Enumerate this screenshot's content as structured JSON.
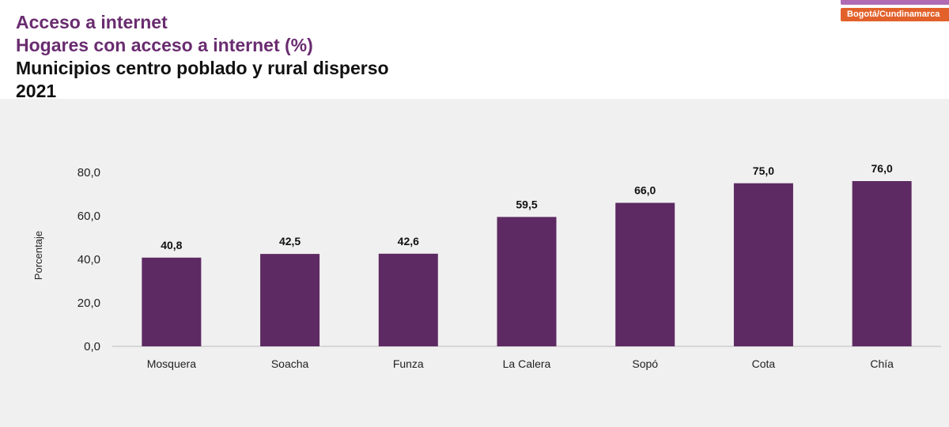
{
  "header": {
    "title": "Acceso a internet",
    "subtitle": "Hogares con acceso a internet (%)",
    "subtitle2": "Municipios centro poblado y rural disperso",
    "year": "2021"
  },
  "badge": {
    "label": "Bogotá/Cundinamarca"
  },
  "chart_data": {
    "type": "bar",
    "categories": [
      "Mosquera",
      "Soacha",
      "Funza",
      "La Calera",
      "Sopó",
      "Cota",
      "Chía"
    ],
    "values": [
      40.8,
      42.5,
      42.6,
      59.5,
      66.0,
      75.0,
      76.0
    ],
    "value_labels": [
      "40,8",
      "42,5",
      "42,6",
      "59,5",
      "66,0",
      "75,0",
      "76,0"
    ],
    "title": "",
    "xlabel": "",
    "ylabel": "Porcentaje",
    "ylim": [
      0,
      80
    ],
    "yticks": [
      0,
      20,
      40,
      60,
      80
    ],
    "ytick_labels": [
      "0,0",
      "20,0",
      "40,0",
      "60,0",
      "80,0"
    ],
    "grid": false,
    "colors": {
      "bar": "#5e2a63"
    }
  }
}
